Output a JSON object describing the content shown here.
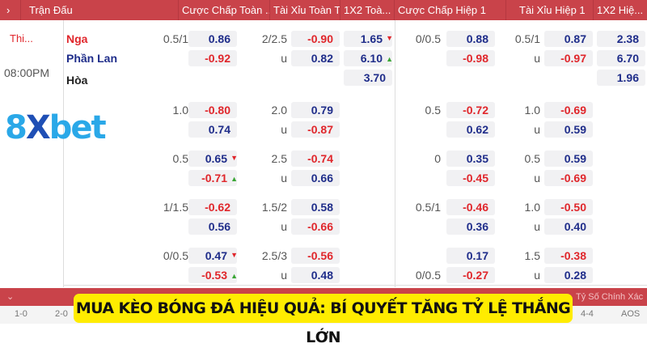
{
  "header": {
    "expand": "›",
    "match": "Trận Đấu",
    "cols": [
      "Cược Chấp Toàn ...",
      "Tài Xỉu Toàn Trận",
      "1X2 Toà...",
      "Cược Chấp Hiệp 1",
      "Tài Xỉu Hiệp 1",
      "1X2 Hiệ..."
    ]
  },
  "match": {
    "status": "Thi...",
    "time": "08:00PM",
    "home": "Nga",
    "away": "Phần Lan",
    "draw": "Hòa"
  },
  "logo": "8xbet",
  "colors": {
    "header": "#c9434a",
    "positive": "#1f2d8a",
    "negative": "#e0262b",
    "banner": "#ffec00"
  },
  "groups": [
    {
      "hdp": {
        "line": "0.5/1",
        "home": "0.86",
        "away": "-0.92"
      },
      "ou": {
        "line": "2/2.5",
        "over": "-0.90",
        "under": "0.82",
        "u": "u"
      },
      "x12": [
        "1.65",
        "6.10",
        "3.70"
      ],
      "x12_arrows": [
        "down",
        "up",
        ""
      ],
      "h1hdp": {
        "line": "0/0.5",
        "home": "0.88",
        "away": "-0.98"
      },
      "h1ou": {
        "line": "0.5/1",
        "over": "0.87",
        "under": "-0.97",
        "u": "u"
      },
      "h1x12": [
        "2.38",
        "6.70",
        "1.96"
      ]
    },
    {
      "hdp": {
        "line": "1.0",
        "home": "-0.80",
        "away": "0.74"
      },
      "ou": {
        "line": "2.0",
        "over": "0.79",
        "under": "-0.87",
        "u": "u"
      },
      "h1hdp": {
        "line": "0.5",
        "home": "-0.72",
        "away": "0.62"
      },
      "h1ou": {
        "line": "1.0",
        "over": "-0.69",
        "under": "0.59",
        "u": "u"
      }
    },
    {
      "hdp": {
        "line": "0.5",
        "home": "0.65",
        "away": "-0.71",
        "arrows": [
          "down",
          "up"
        ]
      },
      "ou": {
        "line": "2.5",
        "over": "-0.74",
        "under": "0.66",
        "u": "u"
      },
      "h1hdp": {
        "line": "0",
        "home": "0.35",
        "away": "-0.45"
      },
      "h1ou": {
        "line": "0.5",
        "over": "0.59",
        "under": "-0.69",
        "u": "u"
      }
    },
    {
      "hdp": {
        "line": "1/1.5",
        "home": "-0.62",
        "away": "0.56"
      },
      "ou": {
        "line": "1.5/2",
        "over": "0.58",
        "under": "-0.66",
        "u": "u"
      },
      "h1hdp": {
        "line": "0.5/1",
        "home": "-0.46",
        "away": "0.36"
      },
      "h1ou": {
        "line": "1.0",
        "over": "-0.50",
        "under": "0.40",
        "u": "u"
      }
    },
    {
      "hdp": {
        "line": "0/0.5",
        "home": "0.47",
        "away": "-0.53",
        "arrows": [
          "down",
          "up"
        ]
      },
      "ou": {
        "line": "2.5/3",
        "over": "-0.56",
        "under": "0.48",
        "u": "u"
      },
      "h1hdp": {
        "line": "0/0.5",
        "home": "0.17",
        "away": "-0.27",
        "line_row": 2
      },
      "h1ou": {
        "line": "1.5",
        "over": "-0.38",
        "under": "0.28",
        "u": "u"
      }
    }
  ],
  "correct_score": {
    "label": "Tỷ Số Chính Xác",
    "scores": [
      "1-0",
      "2-0",
      "4-4",
      "AOS"
    ]
  },
  "banner": "MUA KÈO BÓNG ĐÁ HIỆU QUẢ: BÍ QUYẾT TĂNG TỶ LỆ THẮNG LỚN"
}
